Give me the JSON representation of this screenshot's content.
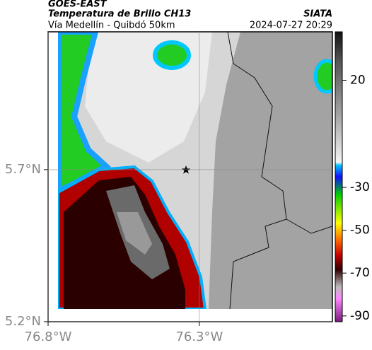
{
  "header": {
    "source": "GOES-EAST",
    "title": "Temperatura de Brillo CH13",
    "agency": "SIATA",
    "subtitle": "Vía Medellín - Quibdó 50km",
    "datetime": "2024-07-27 20:29"
  },
  "map": {
    "lonlim": [
      -76.8,
      -75.86
    ],
    "latlim": [
      5.2,
      6.153
    ],
    "lat_ticks": [
      {
        "value": 5.7,
        "label": "5.7°N"
      },
      {
        "value": 5.2,
        "label": "5.2°N"
      }
    ],
    "lon_ticks": [
      {
        "value": -76.8,
        "label": "76.8°W"
      },
      {
        "value": -76.3,
        "label": "76.3°W"
      }
    ],
    "grid": true
  },
  "colorbar": {
    "clim": [
      -92.7,
      42.6
    ],
    "ticks": [
      20,
      -30,
      -50,
      -70,
      -90
    ]
  }
}
